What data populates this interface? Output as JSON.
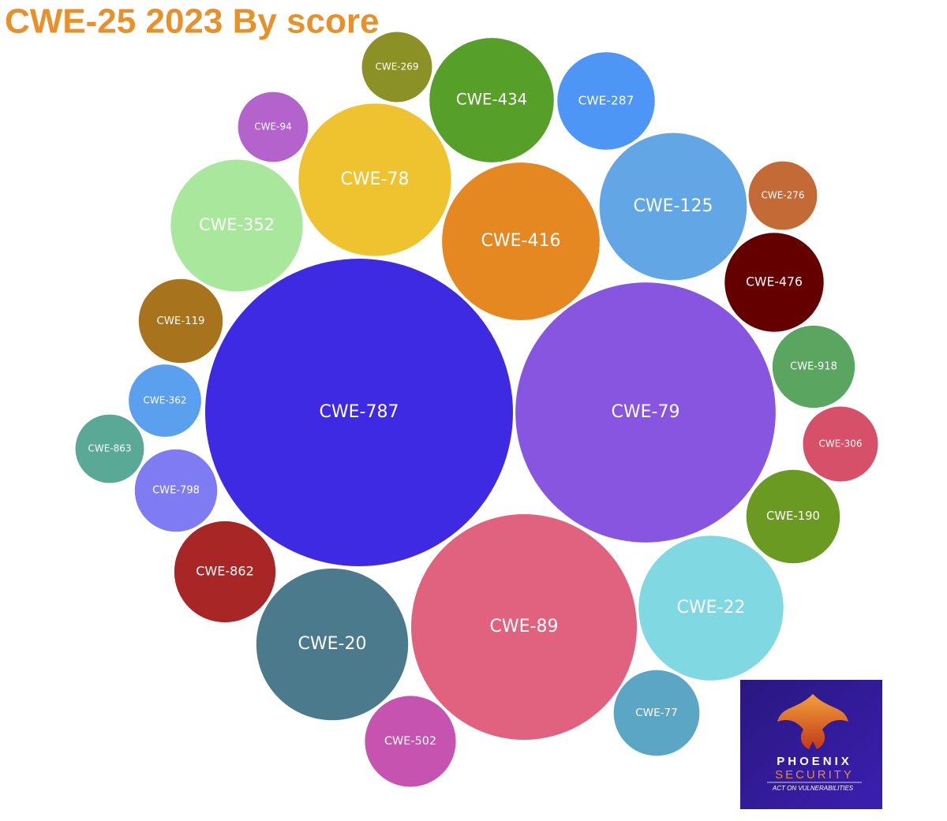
{
  "chart_data": {
    "type": "packed_bubble",
    "title": "CWE-25 2023 By score",
    "categories": [
      "CWE-787",
      "CWE-79",
      "CWE-89",
      "CWE-416",
      "CWE-78",
      "CWE-20",
      "CWE-125",
      "CWE-22",
      "CWE-352",
      "CWE-434",
      "CWE-862",
      "CWE-476",
      "CWE-287",
      "CWE-190",
      "CWE-502",
      "CWE-77",
      "CWE-119",
      "CWE-798",
      "CWE-918",
      "CWE-306",
      "CWE-362",
      "CWE-269",
      "CWE-94",
      "CWE-863",
      "CWE-276"
    ],
    "values": [
      63.72,
      45.54,
      34.27,
      16.71,
      15.65,
      15.5,
      14.6,
      14.11,
      11.73,
      10.41,
      6.9,
      6.59,
      6.39,
      5.89,
      5.56,
      4.95,
      4.75,
      4.57,
      4.56,
      3.78,
      3.53,
      3.31,
      3.3,
      3.16,
      3.16
    ],
    "colors": [
      "#3f2ae3",
      "#8755e0",
      "#e0627f",
      "#e58822",
      "#efc22f",
      "#4a7a8c",
      "#62a6e6",
      "#80d8e2",
      "#a9e89c",
      "#56a02a",
      "#a82626",
      "#640000",
      "#4e96f5",
      "#6b9a23",
      "#c653b0",
      "#5aa6c4",
      "#a8731d",
      "#7f7cf3",
      "#5aa55f",
      "#d55068",
      "#5aa0ee",
      "#8c9125",
      "#b463cc",
      "#5aa896",
      "#c46a36"
    ]
  },
  "logo": {
    "name": "PHOENIX",
    "name2": "SECURITY",
    "tagline": "ACT ON VULNERABILITIES"
  }
}
